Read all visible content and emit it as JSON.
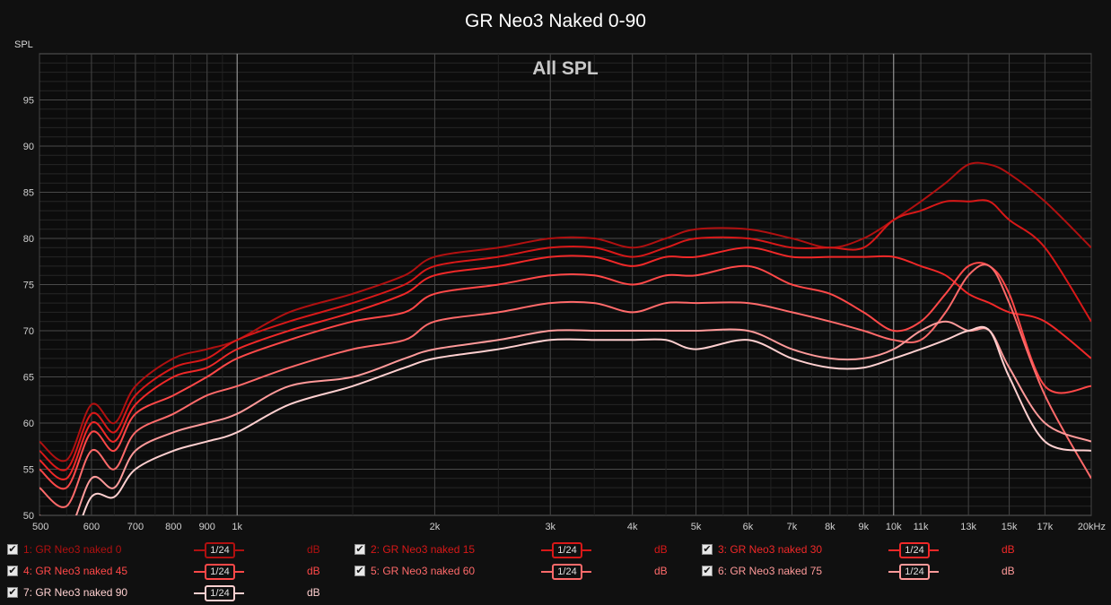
{
  "title": "GR Neo3 Naked 0-90",
  "chart_data": {
    "type": "line",
    "title": "GR Neo3 Naked 0-90",
    "subtitle": "All SPL",
    "ylabel": "SPL",
    "xscale": "log",
    "xlim": [
      500,
      20000
    ],
    "ylim": [
      50,
      100
    ],
    "grid": true,
    "y_ticks": [
      50,
      55,
      60,
      65,
      70,
      75,
      80,
      85,
      90,
      95
    ],
    "x_ticks": [
      {
        "v": 500,
        "label": "500"
      },
      {
        "v": 600,
        "label": "600"
      },
      {
        "v": 700,
        "label": "700"
      },
      {
        "v": 800,
        "label": "800"
      },
      {
        "v": 900,
        "label": "900"
      },
      {
        "v": 1000,
        "label": "1k"
      },
      {
        "v": 2000,
        "label": "2k"
      },
      {
        "v": 3000,
        "label": "3k"
      },
      {
        "v": 4000,
        "label": "4k"
      },
      {
        "v": 5000,
        "label": "5k"
      },
      {
        "v": 6000,
        "label": "6k"
      },
      {
        "v": 7000,
        "label": "7k"
      },
      {
        "v": 8000,
        "label": "8k"
      },
      {
        "v": 9000,
        "label": "9k"
      },
      {
        "v": 10000,
        "label": "10k"
      },
      {
        "v": 11000,
        "label": "11k"
      },
      {
        "v": 13000,
        "label": "13k"
      },
      {
        "v": 15000,
        "label": "15k"
      },
      {
        "v": 17000,
        "label": "17k"
      },
      {
        "v": 20000,
        "label": "20kHz"
      }
    ],
    "series": [
      {
        "name": "1: GR Neo3 naked 0",
        "color": "#b01010",
        "points": [
          [
            500,
            58
          ],
          [
            550,
            56
          ],
          [
            600,
            62
          ],
          [
            650,
            60
          ],
          [
            700,
            64
          ],
          [
            800,
            67
          ],
          [
            900,
            68
          ],
          [
            1000,
            69
          ],
          [
            1200,
            72
          ],
          [
            1500,
            74
          ],
          [
            1800,
            76
          ],
          [
            2000,
            78
          ],
          [
            2500,
            79
          ],
          [
            3000,
            80
          ],
          [
            3500,
            80
          ],
          [
            4000,
            79
          ],
          [
            4500,
            80
          ],
          [
            5000,
            81
          ],
          [
            6000,
            81
          ],
          [
            7000,
            80
          ],
          [
            8000,
            79
          ],
          [
            9000,
            80
          ],
          [
            10000,
            82
          ],
          [
            11000,
            84
          ],
          [
            12000,
            86
          ],
          [
            13000,
            88
          ],
          [
            14000,
            88
          ],
          [
            15000,
            87
          ],
          [
            17000,
            84
          ],
          [
            20000,
            79
          ]
        ]
      },
      {
        "name": "2: GR Neo3 naked 15",
        "color": "#d81818",
        "points": [
          [
            500,
            57
          ],
          [
            550,
            55
          ],
          [
            600,
            61
          ],
          [
            650,
            59
          ],
          [
            700,
            63
          ],
          [
            800,
            66
          ],
          [
            900,
            67
          ],
          [
            1000,
            69
          ],
          [
            1200,
            71
          ],
          [
            1500,
            73
          ],
          [
            1800,
            75
          ],
          [
            2000,
            77
          ],
          [
            2500,
            78
          ],
          [
            3000,
            79
          ],
          [
            3500,
            79
          ],
          [
            4000,
            78
          ],
          [
            4500,
            79
          ],
          [
            5000,
            80
          ],
          [
            6000,
            80
          ],
          [
            7000,
            79
          ],
          [
            8000,
            79
          ],
          [
            9000,
            79
          ],
          [
            10000,
            82
          ],
          [
            11000,
            83
          ],
          [
            12000,
            84
          ],
          [
            13000,
            84
          ],
          [
            14000,
            84
          ],
          [
            15000,
            82
          ],
          [
            17000,
            79
          ],
          [
            20000,
            71
          ]
        ]
      },
      {
        "name": "3: GR Neo3 naked 30",
        "color": "#f02828",
        "points": [
          [
            500,
            56
          ],
          [
            550,
            54
          ],
          [
            600,
            60
          ],
          [
            650,
            58
          ],
          [
            700,
            62
          ],
          [
            800,
            65
          ],
          [
            900,
            66
          ],
          [
            1000,
            68
          ],
          [
            1200,
            70
          ],
          [
            1500,
            72
          ],
          [
            1800,
            74
          ],
          [
            2000,
            76
          ],
          [
            2500,
            77
          ],
          [
            3000,
            78
          ],
          [
            3500,
            78
          ],
          [
            4000,
            77
          ],
          [
            4500,
            78
          ],
          [
            5000,
            78
          ],
          [
            6000,
            79
          ],
          [
            7000,
            78
          ],
          [
            8000,
            78
          ],
          [
            9000,
            78
          ],
          [
            10000,
            78
          ],
          [
            11000,
            77
          ],
          [
            12000,
            76
          ],
          [
            13000,
            74
          ],
          [
            14000,
            73
          ],
          [
            15000,
            72
          ],
          [
            17000,
            71
          ],
          [
            20000,
            67
          ]
        ]
      },
      {
        "name": "4: GR Neo3 naked 45",
        "color": "#ff4848",
        "points": [
          [
            500,
            55
          ],
          [
            550,
            53
          ],
          [
            600,
            59
          ],
          [
            650,
            57
          ],
          [
            700,
            61
          ],
          [
            800,
            63
          ],
          [
            900,
            65
          ],
          [
            1000,
            67
          ],
          [
            1200,
            69
          ],
          [
            1500,
            71
          ],
          [
            1800,
            72
          ],
          [
            2000,
            74
          ],
          [
            2500,
            75
          ],
          [
            3000,
            76
          ],
          [
            3500,
            76
          ],
          [
            4000,
            75
          ],
          [
            4500,
            76
          ],
          [
            5000,
            76
          ],
          [
            6000,
            77
          ],
          [
            7000,
            75
          ],
          [
            8000,
            74
          ],
          [
            9000,
            72
          ],
          [
            10000,
            70
          ],
          [
            11000,
            71
          ],
          [
            12000,
            74
          ],
          [
            13000,
            77
          ],
          [
            14000,
            77
          ],
          [
            15000,
            74
          ],
          [
            17000,
            64
          ],
          [
            20000,
            64
          ]
        ]
      },
      {
        "name": "5: GR Neo3 naked 60",
        "color": "#ff6a6a",
        "points": [
          [
            500,
            53
          ],
          [
            550,
            51
          ],
          [
            600,
            57
          ],
          [
            650,
            55
          ],
          [
            700,
            59
          ],
          [
            800,
            61
          ],
          [
            900,
            63
          ],
          [
            1000,
            64
          ],
          [
            1200,
            66
          ],
          [
            1500,
            68
          ],
          [
            1800,
            69
          ],
          [
            2000,
            71
          ],
          [
            2500,
            72
          ],
          [
            3000,
            73
          ],
          [
            3500,
            73
          ],
          [
            4000,
            72
          ],
          [
            4500,
            73
          ],
          [
            5000,
            73
          ],
          [
            6000,
            73
          ],
          [
            7000,
            72
          ],
          [
            8000,
            71
          ],
          [
            9000,
            70
          ],
          [
            10000,
            69
          ],
          [
            11000,
            69
          ],
          [
            12000,
            72
          ],
          [
            13000,
            76
          ],
          [
            14000,
            77
          ],
          [
            15000,
            73
          ],
          [
            17000,
            63
          ],
          [
            20000,
            54
          ]
        ]
      },
      {
        "name": "6: GR Neo3 naked 75",
        "color": "#ff9a9a",
        "points": [
          [
            500,
            50
          ],
          [
            550,
            48
          ],
          [
            600,
            54
          ],
          [
            650,
            53
          ],
          [
            700,
            57
          ],
          [
            800,
            59
          ],
          [
            900,
            60
          ],
          [
            1000,
            61
          ],
          [
            1200,
            64
          ],
          [
            1500,
            65
          ],
          [
            1800,
            67
          ],
          [
            2000,
            68
          ],
          [
            2500,
            69
          ],
          [
            3000,
            70
          ],
          [
            3500,
            70
          ],
          [
            4000,
            70
          ],
          [
            4500,
            70
          ],
          [
            5000,
            70
          ],
          [
            6000,
            70
          ],
          [
            7000,
            68
          ],
          [
            8000,
            67
          ],
          [
            9000,
            67
          ],
          [
            10000,
            68
          ],
          [
            11000,
            70
          ],
          [
            12000,
            71
          ],
          [
            13000,
            70
          ],
          [
            14000,
            70
          ],
          [
            15000,
            66
          ],
          [
            17000,
            60
          ],
          [
            20000,
            58
          ]
        ]
      },
      {
        "name": "7: GR Neo3 naked 90",
        "color": "#ffd0d0",
        "points": [
          [
            500,
            48
          ],
          [
            550,
            46
          ],
          [
            600,
            52
          ],
          [
            650,
            52
          ],
          [
            700,
            55
          ],
          [
            800,
            57
          ],
          [
            900,
            58
          ],
          [
            1000,
            59
          ],
          [
            1200,
            62
          ],
          [
            1500,
            64
          ],
          [
            1800,
            66
          ],
          [
            2000,
            67
          ],
          [
            2500,
            68
          ],
          [
            3000,
            69
          ],
          [
            3500,
            69
          ],
          [
            4000,
            69
          ],
          [
            4500,
            69
          ],
          [
            5000,
            68
          ],
          [
            6000,
            69
          ],
          [
            7000,
            67
          ],
          [
            8000,
            66
          ],
          [
            9000,
            66
          ],
          [
            10000,
            67
          ],
          [
            11000,
            68
          ],
          [
            12000,
            69
          ],
          [
            13000,
            70
          ],
          [
            14000,
            70
          ],
          [
            15000,
            65
          ],
          [
            17000,
            58
          ],
          [
            20000,
            57
          ]
        ]
      }
    ]
  },
  "legend": [
    {
      "name": "1: GR Neo3 naked 0",
      "smoothing": "1/24",
      "unit": "dB",
      "color": "#b01010"
    },
    {
      "name": "2: GR Neo3 naked 15",
      "smoothing": "1/24",
      "unit": "dB",
      "color": "#d81818"
    },
    {
      "name": "3: GR Neo3 naked 30",
      "smoothing": "1/24",
      "unit": "dB",
      "color": "#f02828"
    },
    {
      "name": "4: GR Neo3 naked 45",
      "smoothing": "1/24",
      "unit": "dB",
      "color": "#ff4848"
    },
    {
      "name": "5: GR Neo3 naked 60",
      "smoothing": "1/24",
      "unit": "dB",
      "color": "#ff6a6a"
    },
    {
      "name": "6: GR Neo3 naked 75",
      "smoothing": "1/24",
      "unit": "dB",
      "color": "#ff9a9a"
    },
    {
      "name": "7: GR Neo3 naked 90",
      "smoothing": "1/24",
      "unit": "dB",
      "color": "#ffd0d0"
    }
  ]
}
